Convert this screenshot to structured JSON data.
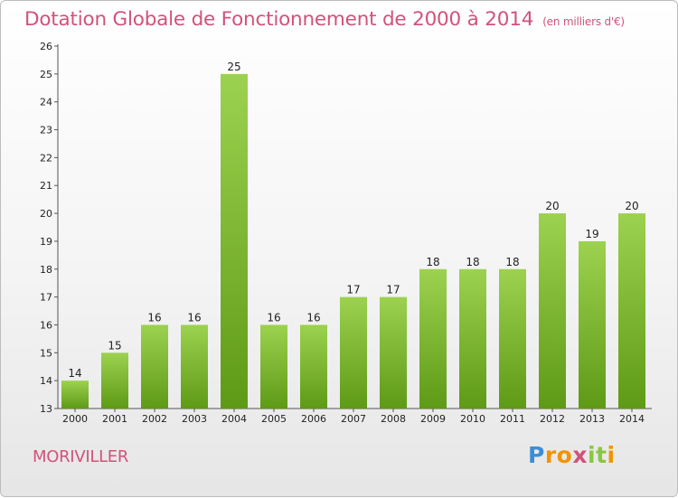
{
  "chart_data": {
    "type": "bar",
    "title": "Dotation Globale de Fonctionnement de 2000 à 2014",
    "subtitle": "(en milliers d'€)",
    "categories": [
      "2000",
      "2001",
      "2002",
      "2003",
      "2004",
      "2005",
      "2006",
      "2007",
      "2008",
      "2009",
      "2010",
      "2011",
      "2012",
      "2013",
      "2014"
    ],
    "values": [
      14,
      15,
      16,
      16,
      25,
      16,
      16,
      17,
      17,
      18,
      18,
      18,
      20,
      19,
      20
    ],
    "ylim": [
      13,
      26
    ],
    "yticks": [
      13,
      14,
      15,
      16,
      17,
      18,
      19,
      20,
      21,
      22,
      23,
      24,
      25,
      26
    ],
    "grid": false,
    "colors": {
      "bar_top": "#9cd24f",
      "bar_bottom": "#5e9a16",
      "axis": "#555555",
      "text": "#222222",
      "accent": "#d2527a"
    }
  },
  "footer": {
    "town": "MORIVILLER",
    "logo_letters": [
      {
        "ch": "P",
        "color": "#3c8dd8"
      },
      {
        "ch": "r",
        "color": "#f29300"
      },
      {
        "ch": "o",
        "color": "#f29300"
      },
      {
        "ch": "x",
        "color": "#d2527a"
      },
      {
        "ch": "i",
        "color": "#8cc63f"
      },
      {
        "ch": "t",
        "color": "#8cc63f"
      },
      {
        "ch": "i",
        "color": "#f29300"
      }
    ]
  }
}
